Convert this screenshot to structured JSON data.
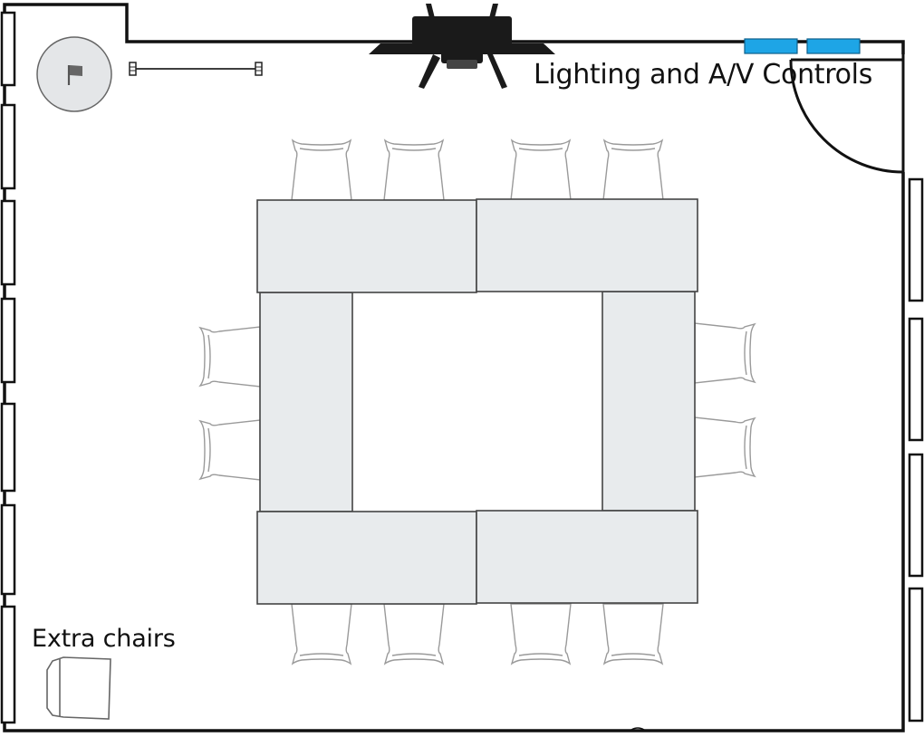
{
  "labels": {
    "av_controls": "Lighting and A/V Controls",
    "extra_chairs": "Extra chairs"
  },
  "icons": {
    "flag": "flag-icon",
    "camera": "camera-icon",
    "control_panel": "control-panel-icon"
  },
  "colors": {
    "wall": "#111111",
    "table_fill": "#e8ebed",
    "table_stroke": "#444444",
    "chair_stroke": "#9a9a9a",
    "control_panel": "#1ea5e6",
    "flag_circle": "#e4e6e8",
    "camera": "#1a1a1a"
  }
}
